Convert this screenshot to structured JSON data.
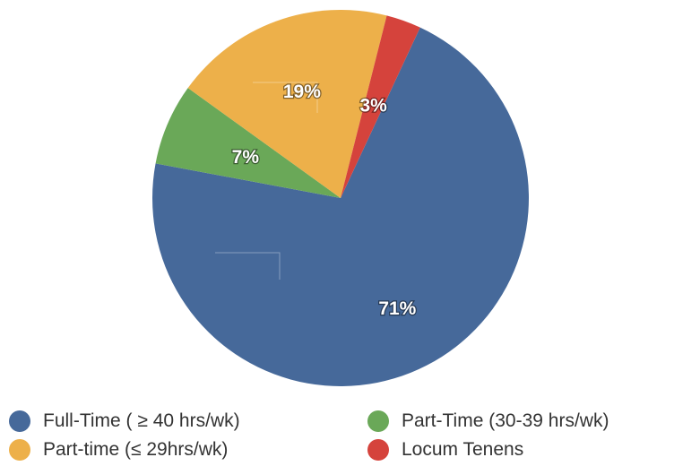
{
  "chart_data": {
    "type": "pie",
    "slices": [
      {
        "label": "Full-Time ( ≥ 40 hrs/wk)",
        "value": 71,
        "display": "71%",
        "color": "#46699a"
      },
      {
        "label": "Part-Time (30-39 hrs/wk)",
        "value": 7,
        "display": "7%",
        "color": "#6aa858"
      },
      {
        "label": "Part-time (≤ 29hrs/wk)",
        "value": 19,
        "display": "19%",
        "color": "#edb04a"
      },
      {
        "label": "Locum Tenens",
        "value": 3,
        "display": "3%",
        "color": "#d5433c"
      }
    ],
    "legend_placement": "bottom"
  }
}
